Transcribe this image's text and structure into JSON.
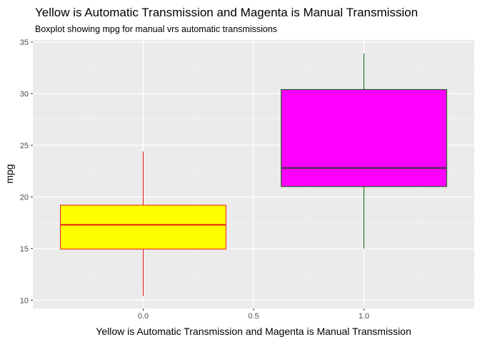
{
  "chart_data": {
    "type": "boxplot",
    "title": "Yellow is Automatic Transmission and Magenta is Manual Transmission",
    "subtitle": "Boxplot showing mpg for manual vrs automatic transmissions",
    "xlabel": "Yellow is Automatic Transmission and Magenta is Manual Transmission",
    "ylabel": "mpg",
    "xlim": [
      -0.5,
      1.5
    ],
    "ylim": [
      9.2,
      35.2
    ],
    "x_ticks": [
      0.0,
      0.5,
      1.0
    ],
    "x_tick_labels": [
      "0.0",
      "0.5",
      "1.0"
    ],
    "y_ticks": [
      10,
      15,
      20,
      25,
      30,
      35
    ],
    "y_tick_labels": [
      "10",
      "15",
      "20",
      "25",
      "30",
      "35"
    ],
    "grid": true,
    "background": "#ebebeb",
    "boxes": [
      {
        "x": 0,
        "width": 0.75,
        "min": 10.4,
        "q1": 14.95,
        "median": 17.3,
        "q3": 19.2,
        "max": 24.4,
        "fill": "#ffff00",
        "line_color": "#e41a1c"
      },
      {
        "x": 1,
        "width": 0.75,
        "min": 15.0,
        "q1": 21.0,
        "median": 22.8,
        "q3": 30.4,
        "max": 33.9,
        "fill": "#ff00ff",
        "line_color": "#006400",
        "median_color": "#333333"
      }
    ]
  }
}
